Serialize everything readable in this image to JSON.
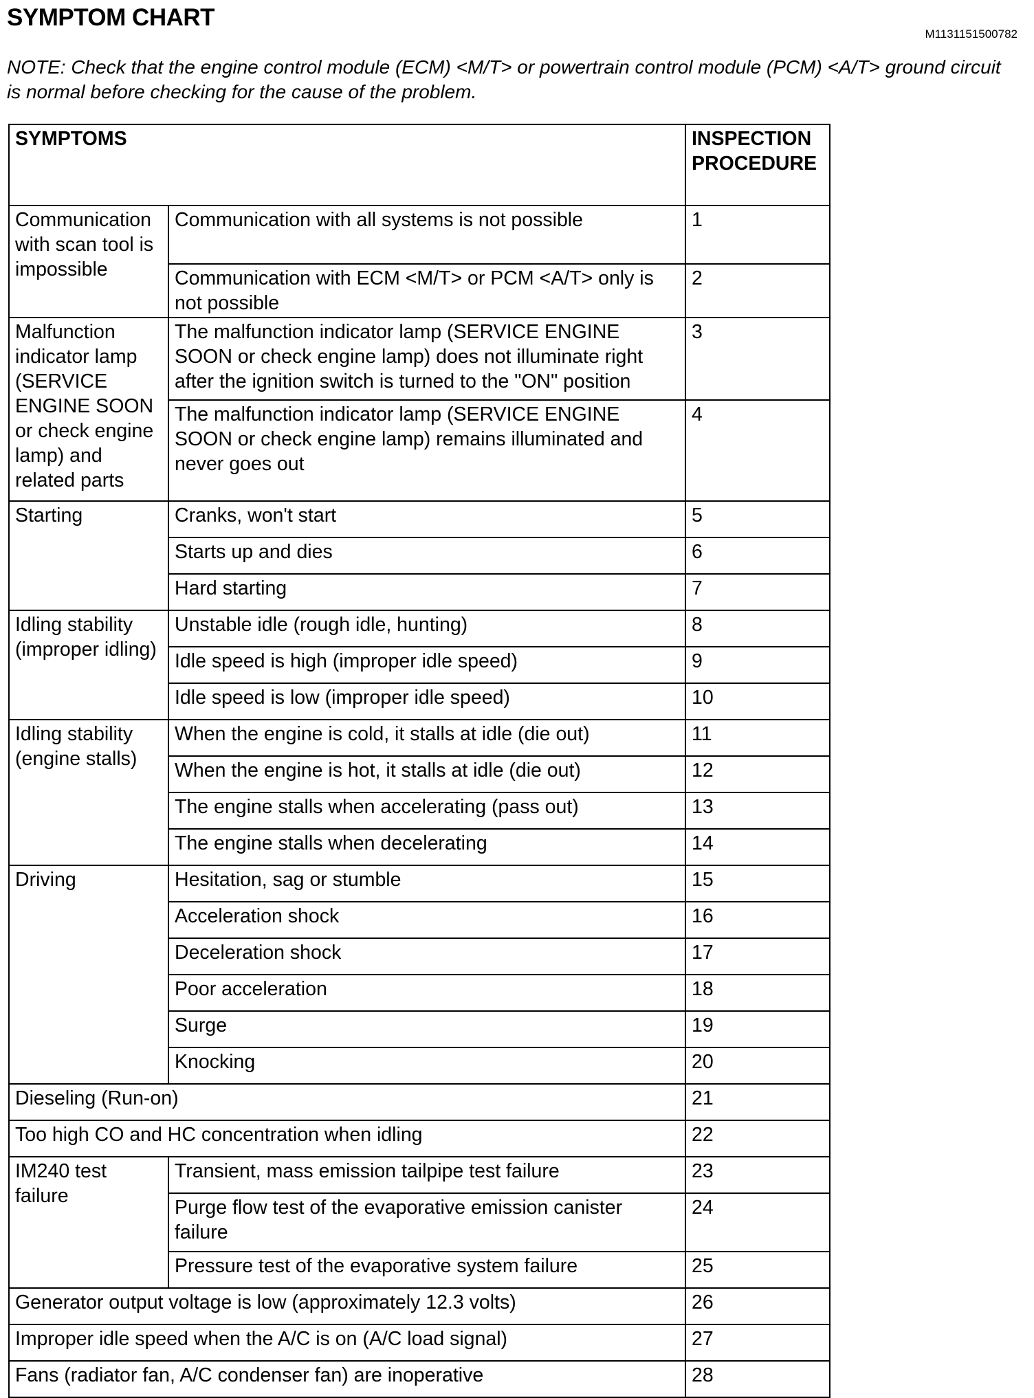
{
  "title": "SYMPTOM CHART",
  "doc_id": "M1131151500782",
  "note": "NOTE: Check that the engine control module (ECM) <M/T> or powertrain control module (PCM) <A/T> ground circuit is normal before checking for the cause of the problem.",
  "table": {
    "headers": {
      "symptoms": "SYMPTOMS",
      "procedure": "INSPECTION PROCEDURE"
    },
    "groups": [
      {
        "category": "Communication with scan tool is impossible",
        "items": [
          {
            "symptom": "Communication with all systems is not possible",
            "procedure": "1"
          },
          {
            "symptom": "Communication with ECM <M/T> or PCM <A/T> only is not possible",
            "procedure": "2"
          }
        ]
      },
      {
        "category": "Malfunction indicator lamp (SERVICE ENGINE SOON or check engine lamp) and related parts",
        "items": [
          {
            "symptom": "The malfunction indicator lamp (SERVICE ENGINE SOON or check engine lamp) does not illuminate right after the ignition switch is turned to the \"ON\" position",
            "procedure": "3"
          },
          {
            "symptom": "The malfunction indicator lamp (SERVICE ENGINE SOON or check engine lamp) remains illuminated and never goes out",
            "procedure": "4"
          }
        ]
      },
      {
        "category": "Starting",
        "items": [
          {
            "symptom": "Cranks, won't start",
            "procedure": "5"
          },
          {
            "symptom": "Starts up and dies",
            "procedure": "6"
          },
          {
            "symptom": "Hard starting",
            "procedure": "7"
          }
        ]
      },
      {
        "category": "Idling stability (improper idling)",
        "items": [
          {
            "symptom": "Unstable idle (rough idle, hunting)",
            "procedure": "8"
          },
          {
            "symptom": "Idle speed is high (improper idle speed)",
            "procedure": "9"
          },
          {
            "symptom": "Idle speed is low (improper idle speed)",
            "procedure": "10"
          }
        ]
      },
      {
        "category": "Idling stability (engine stalls)",
        "items": [
          {
            "symptom": "When the engine is cold, it stalls at idle (die out)",
            "procedure": "11"
          },
          {
            "symptom": "When the engine is hot, it stalls at idle (die out)",
            "procedure": "12"
          },
          {
            "symptom": "The engine stalls when accelerating (pass out)",
            "procedure": "13"
          },
          {
            "symptom": "The engine stalls when decelerating",
            "procedure": "14"
          }
        ]
      },
      {
        "category": "Driving",
        "items": [
          {
            "symptom": "Hesitation, sag or stumble",
            "procedure": "15"
          },
          {
            "symptom": "Acceleration shock",
            "procedure": "16"
          },
          {
            "symptom": "Deceleration shock",
            "procedure": "17"
          },
          {
            "symptom": "Poor acceleration",
            "procedure": "18"
          },
          {
            "symptom": "Surge",
            "procedure": "19"
          },
          {
            "symptom": "Knocking",
            "procedure": "20"
          }
        ]
      },
      {
        "category": null,
        "items": [
          {
            "symptom": "Dieseling (Run-on)",
            "procedure": "21"
          }
        ]
      },
      {
        "category": null,
        "items": [
          {
            "symptom": "Too high CO and HC concentration when idling",
            "procedure": "22"
          }
        ]
      },
      {
        "category": "IM240 test failure",
        "items": [
          {
            "symptom": "Transient, mass emission tailpipe test failure",
            "procedure": "23"
          },
          {
            "symptom": "Purge flow test of the evaporative emission canister failure",
            "procedure": "24"
          },
          {
            "symptom": "Pressure test of the evaporative system failure",
            "procedure": "25"
          }
        ]
      },
      {
        "category": null,
        "items": [
          {
            "symptom": "Generator output voltage is low (approximately 12.3 volts)",
            "procedure": "26"
          }
        ]
      },
      {
        "category": null,
        "items": [
          {
            "symptom": "Improper idle speed when the A/C is on (A/C load signal)",
            "procedure": "27"
          }
        ]
      },
      {
        "category": null,
        "items": [
          {
            "symptom": "Fans (radiator fan, A/C condenser fan) are inoperative",
            "procedure": "28"
          }
        ]
      }
    ]
  }
}
